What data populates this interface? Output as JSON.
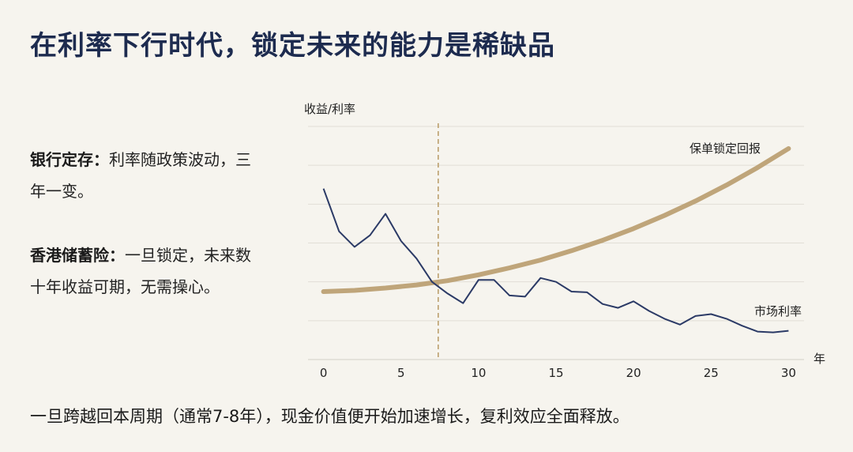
{
  "page": {
    "title": "在利率下行时代，锁定未来的能力是稀缺品",
    "points": [
      {
        "lead": "银行定存：",
        "text": "利率随政策波动，三年一变。"
      },
      {
        "lead": "香港储蓄险：",
        "text": "一旦锁定，未来数十年收益可期，无需操心。"
      }
    ],
    "footer": "一旦跨越回本周期（通常7-8年），现金价值便开始加速增长，复利效应全面释放。"
  },
  "chart_data": {
    "type": "line",
    "ylabel": "收益/利率",
    "xlabel": "年",
    "xlim": [
      -1,
      31
    ],
    "ylim": [
      0,
      6
    ],
    "xticks": [
      0,
      5,
      10,
      15,
      20,
      25,
      30
    ],
    "grid": true,
    "vline_x": 7.4,
    "series": [
      {
        "name": "保单锁定回报",
        "color": "#bfa57a",
        "x": [
          0,
          2,
          4,
          6,
          8,
          10,
          12,
          14,
          16,
          18,
          20,
          22,
          24,
          26,
          28,
          30
        ],
        "values": [
          1.75,
          1.78,
          1.84,
          1.92,
          2.03,
          2.18,
          2.36,
          2.56,
          2.8,
          3.07,
          3.37,
          3.71,
          4.08,
          4.49,
          4.94,
          5.43
        ]
      },
      {
        "name": "市场利率",
        "color": "#2b3a66",
        "x": [
          0,
          1,
          2,
          3,
          4,
          5,
          6,
          7,
          8,
          9,
          10,
          11,
          12,
          13,
          14,
          15,
          16,
          17,
          18,
          19,
          20,
          21,
          22,
          23,
          24,
          25,
          26,
          27,
          28,
          29,
          30
        ],
        "values": [
          4.4,
          3.3,
          2.9,
          3.2,
          3.75,
          3.05,
          2.6,
          2.0,
          1.7,
          1.45,
          2.05,
          2.05,
          1.65,
          1.62,
          2.1,
          2.0,
          1.75,
          1.73,
          1.43,
          1.33,
          1.5,
          1.25,
          1.05,
          0.9,
          1.12,
          1.17,
          1.05,
          0.87,
          0.72,
          0.7,
          0.74
        ]
      }
    ]
  }
}
